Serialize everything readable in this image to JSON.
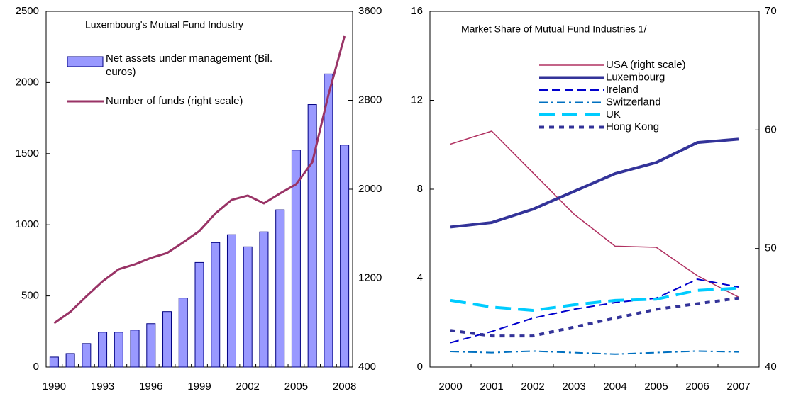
{
  "chart_data": [
    {
      "type": "bar",
      "title": "Luxembourg's Mutual Fund Industry",
      "categories": [
        "1990",
        null,
        null,
        "1993",
        null,
        null,
        "1996",
        null,
        null,
        "1999",
        null,
        null,
        "2002",
        null,
        null,
        "2005",
        null,
        null,
        "2008"
      ],
      "ylim": [
        0,
        2500
      ],
      "yticks": [
        0,
        500,
        1000,
        1500,
        2000,
        2500
      ],
      "y2lim": [
        400,
        3600
      ],
      "y2ticks": [
        400,
        1200,
        2000,
        2800,
        3600
      ],
      "series": [
        {
          "name": "Net assets under management (Bil. euros)",
          "type": "bar",
          "color": "#9999ff",
          "values": [
            70,
            95,
            165,
            245,
            245,
            260,
            305,
            390,
            485,
            735,
            875,
            930,
            845,
            950,
            1105,
            1525,
            1845,
            2060,
            1560
          ]
        },
        {
          "name": "Number of funds (right scale)",
          "type": "line",
          "axis": "y2",
          "color": "#993366",
          "values": [
            795,
            897,
            1037,
            1171,
            1280,
            1324,
            1382,
            1426,
            1522,
            1624,
            1783,
            1904,
            1943,
            1873,
            1962,
            2045,
            2242,
            2848,
            3377
          ]
        }
      ]
    },
    {
      "type": "line",
      "title": "Market Share of Mutual Fund Industries 1/",
      "categories": [
        "2000",
        "2001",
        "2002",
        "2003",
        "2004",
        "2005",
        "2006",
        "2007"
      ],
      "ylim": [
        0,
        16
      ],
      "yticks": [
        0,
        4,
        8,
        12,
        16
      ],
      "y2lim": [
        40,
        70
      ],
      "y2ticks": [
        40,
        50,
        60,
        70
      ],
      "series": [
        {
          "name": "USA (right scale)",
          "axis": "y2",
          "color": "#b03060",
          "width": 1.5,
          "dash": "none",
          "values": [
            58.8,
            59.9,
            56.4,
            52.9,
            50.2,
            50.1,
            47.7,
            45.9
          ]
        },
        {
          "name": "Luxembourg",
          "color": "#333399",
          "width": 4,
          "dash": "none",
          "values": [
            6.3,
            6.5,
            7.1,
            7.9,
            8.7,
            9.2,
            10.1,
            10.25
          ]
        },
        {
          "name": "Ireland",
          "color": "#0000cc",
          "width": 2,
          "dash": "12 6",
          "values": [
            1.1,
            1.6,
            2.2,
            2.6,
            2.9,
            3.1,
            3.95,
            3.6
          ]
        },
        {
          "name": "Switzerland",
          "color": "#0070c0",
          "width": 2,
          "dash": "12 5 3 5",
          "values": [
            0.7,
            0.65,
            0.72,
            0.65,
            0.58,
            0.65,
            0.72,
            0.68
          ]
        },
        {
          "name": "UK",
          "color": "#00ccff",
          "width": 4,
          "dash": "22 10",
          "values": [
            3.0,
            2.7,
            2.55,
            2.8,
            3.0,
            3.05,
            3.45,
            3.55
          ]
        },
        {
          "name": "Hong Kong",
          "color": "#333399",
          "width": 4,
          "dash": "7 7",
          "values": [
            1.65,
            1.4,
            1.4,
            1.8,
            2.2,
            2.6,
            2.85,
            3.1
          ]
        }
      ]
    }
  ]
}
